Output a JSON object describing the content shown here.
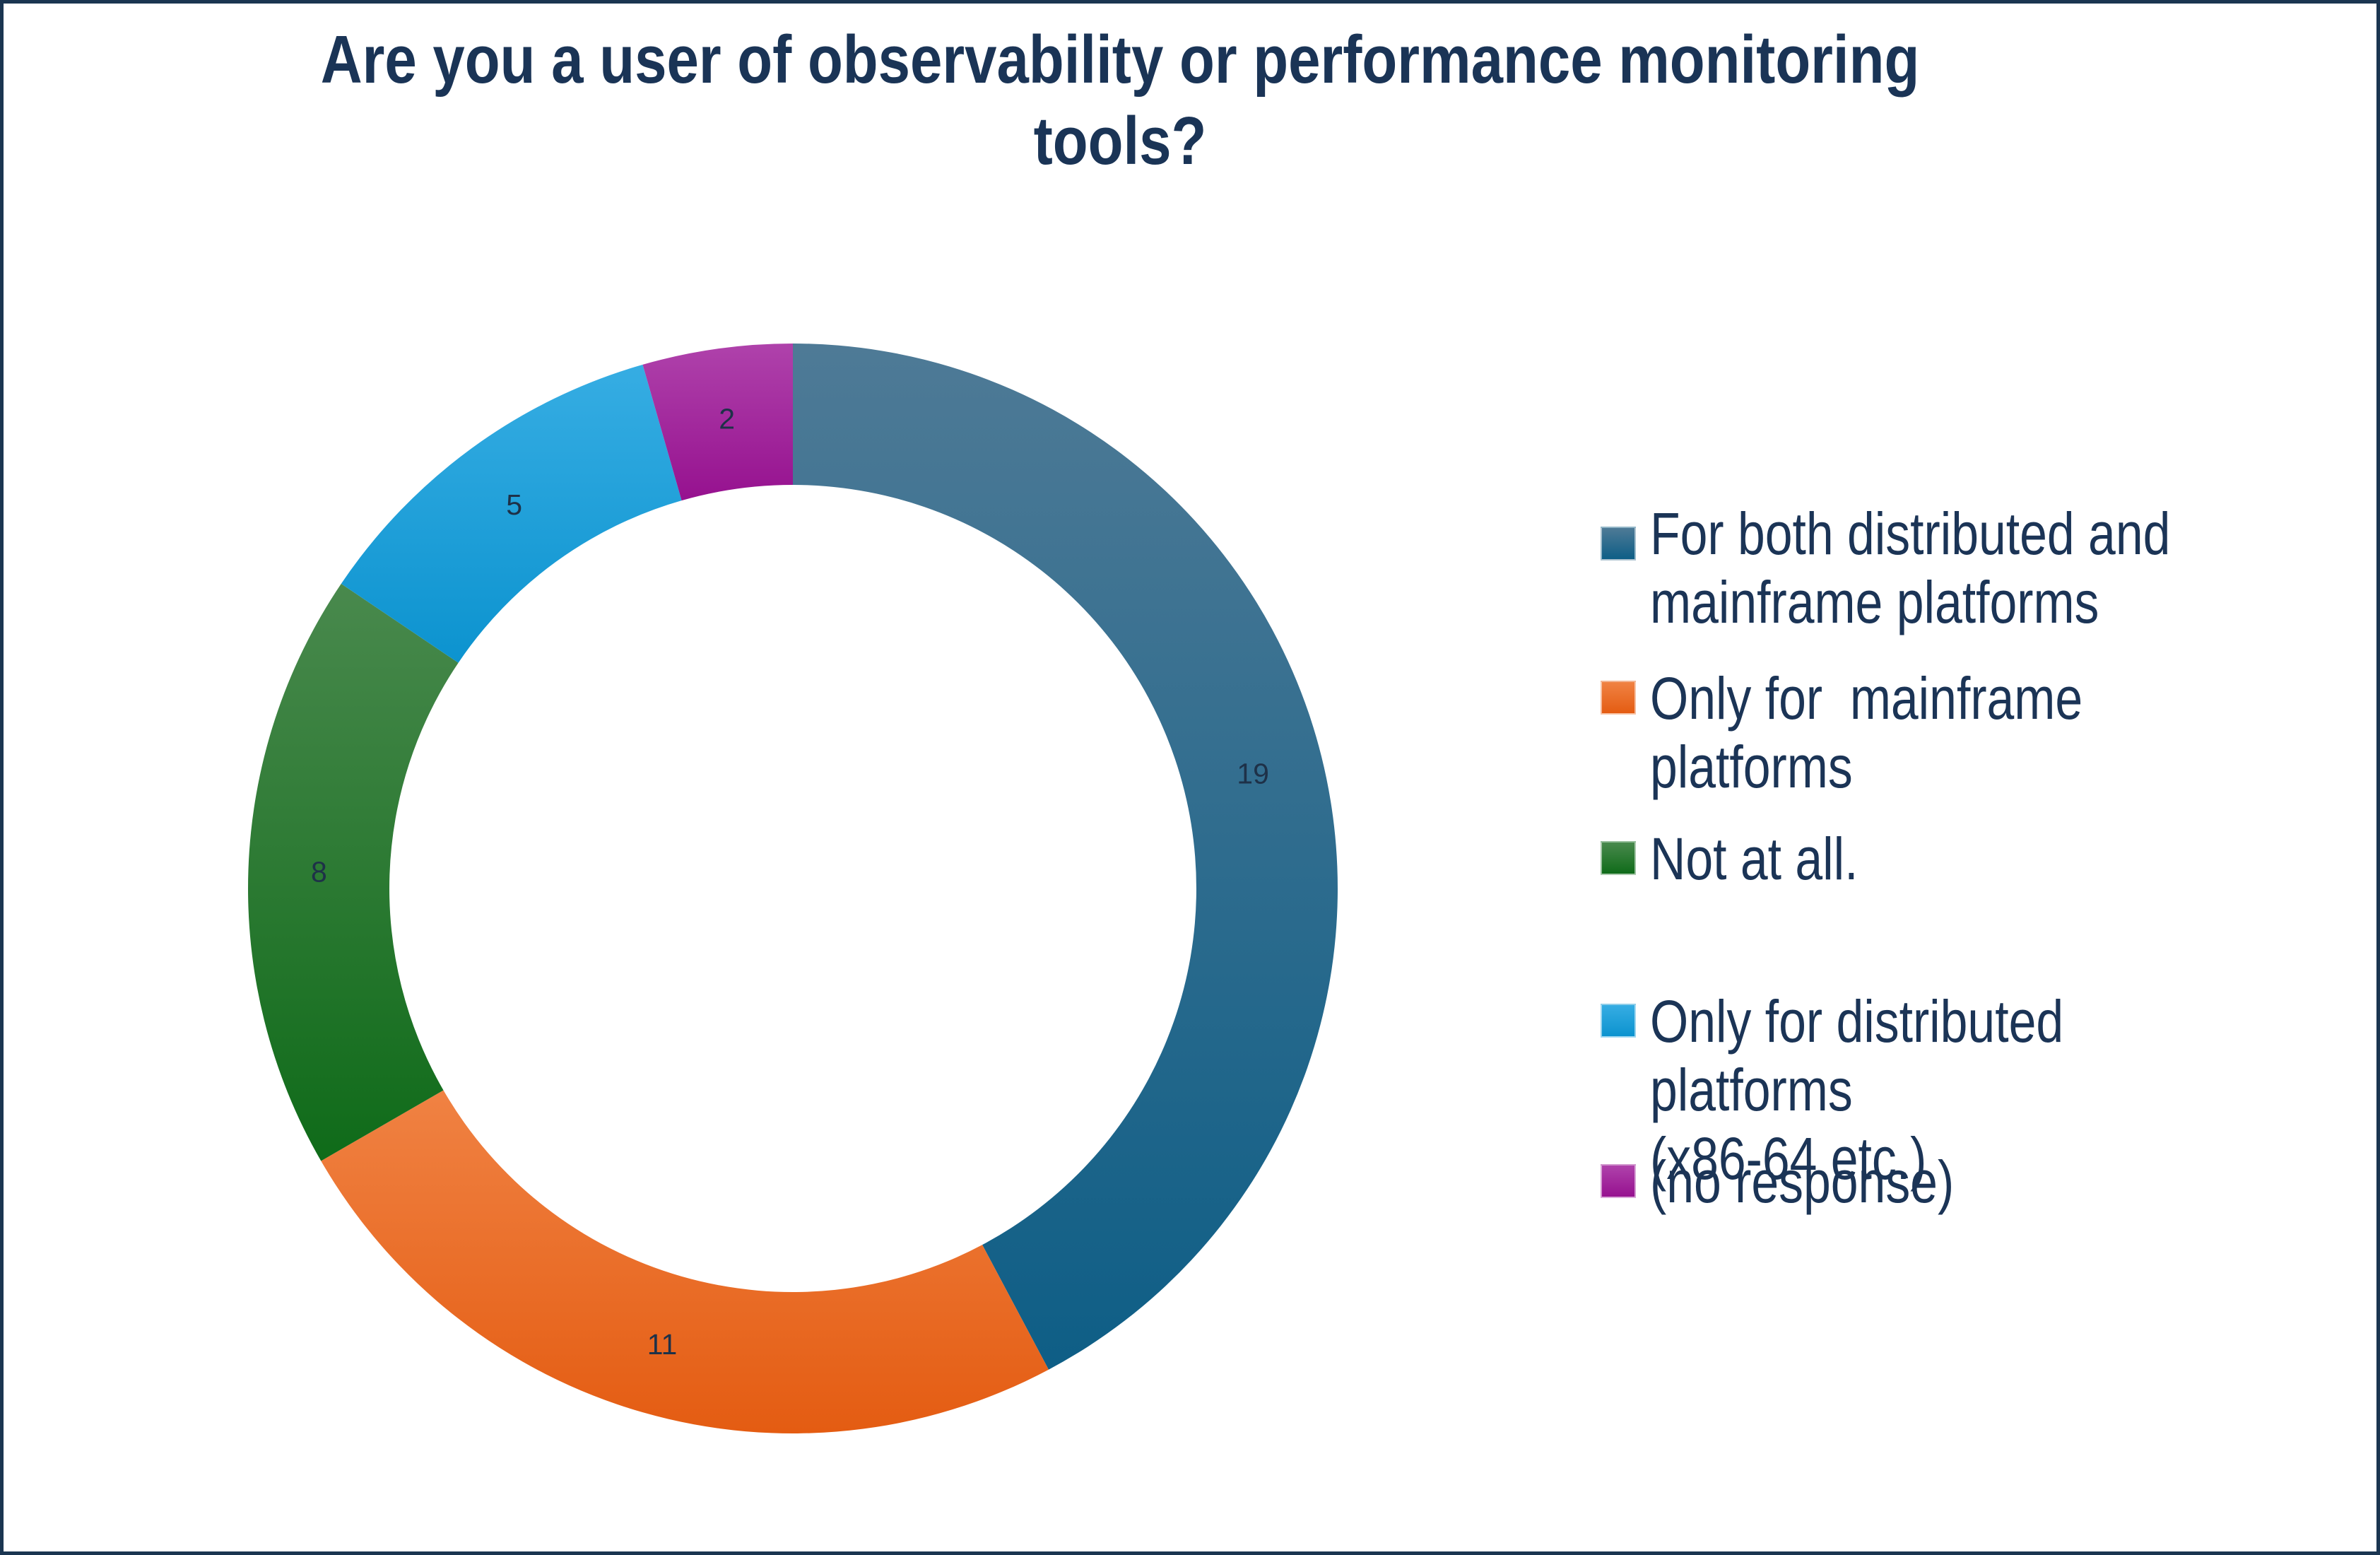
{
  "page": {
    "background": "#FFFFFF",
    "border_color": "#1A3551"
  },
  "title": {
    "text": "Are you a user of observability or performance monitoring tools?",
    "lines": [
      "Are you a user of observability or performance monitoring",
      "tools?"
    ],
    "color": "#1A3456"
  },
  "chart_data": {
    "type": "pie",
    "subtype": "doughnut",
    "title": "Are you a user of observability or performance monitoring tools?",
    "direction": "clockwise",
    "start_angle_deg": 0,
    "hole_ratio": 0.74,
    "total": 45,
    "legend_position": "right",
    "data_label_color": "#1E3148",
    "series": [
      {
        "label": "For both distributed and\nmainframe platforms",
        "value": 19,
        "color": "#1E6486",
        "gradient": [
          "#4E7A96",
          "#0E5E86"
        ]
      },
      {
        "label": "Only for  mainframe platforms",
        "value": 11,
        "color": "#EA6F2B",
        "gradient": [
          "#F08243",
          "#E45C12"
        ]
      },
      {
        "label": "Not at all.",
        "value": 8,
        "color": "#1F7A28",
        "gradient": [
          "#49894D",
          "#0F6B19"
        ]
      },
      {
        "label": "Only for distributed platforms\n(x86-64 etc.)",
        "value": 5,
        "color": "#1DA0D9",
        "gradient": [
          "#36ADE3",
          "#0C93CF"
        ]
      },
      {
        "label": "(no response)",
        "value": 2,
        "color": "#A3239D",
        "gradient": [
          "#AF42AB",
          "#96118F"
        ]
      }
    ]
  }
}
